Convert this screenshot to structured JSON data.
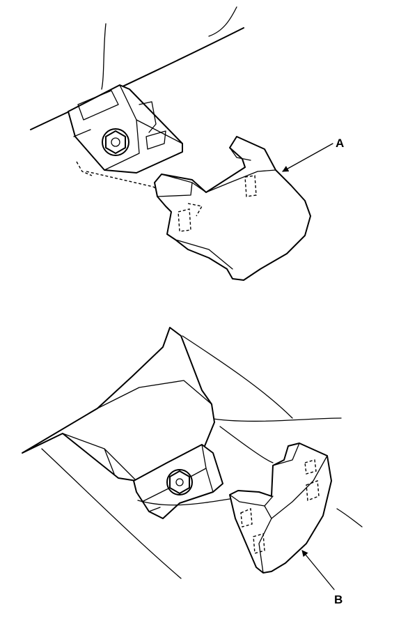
{
  "figure": {
    "top_view": {
      "callout": "A"
    },
    "bottom_view": {
      "callout": "B"
    }
  },
  "colors": {
    "line": "#000000",
    "background": "#ffffff"
  },
  "icons": {
    "arrow": "arrow-icon",
    "bolt": "bolt-icon"
  }
}
